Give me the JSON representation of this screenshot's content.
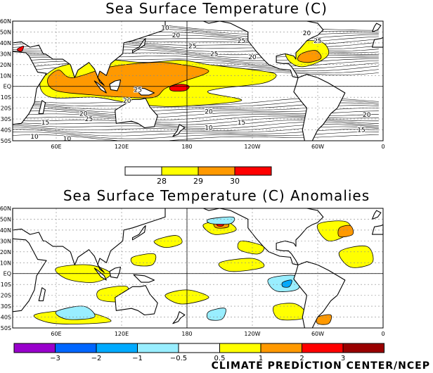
{
  "map1": {
    "title": "Sea Surface Temperature (C)",
    "lat_labels": [
      "60N",
      "50N",
      "40N",
      "30N",
      "20N",
      "10N",
      "EQ",
      "10S",
      "20S",
      "30S",
      "40S",
      "50S"
    ],
    "lon_labels": [
      "60E",
      "120E",
      "180",
      "120W",
      "60W",
      "0"
    ],
    "contour_labels": [
      "10",
      "20",
      "25",
      "25",
      "20",
      "25",
      "20",
      "25",
      "25",
      "20",
      "15",
      "20",
      "25",
      "20",
      "15",
      "10",
      "20",
      "15",
      "10",
      "10"
    ],
    "legend_labels": [
      "28",
      "29",
      "30"
    ]
  },
  "map2": {
    "title": "Sea Surface Temperature (C) Anomalies",
    "lat_labels": [
      "60N",
      "50N",
      "40N",
      "30N",
      "20N",
      "10N",
      "EQ",
      "10S",
      "20S",
      "30S",
      "40S",
      "50S"
    ],
    "lon_labels": [
      "60E",
      "120E",
      "180",
      "120W",
      "60W",
      "0"
    ],
    "legend_labels": [
      "−3",
      "−2",
      "−1",
      "−0.5",
      "0.5",
      "1",
      "2",
      "3"
    ]
  },
  "colors": {
    "sst_28": "#ffff00",
    "sst_29": "#ff9900",
    "sst_30": "#ff0000",
    "anom_bins": [
      "#9900cc",
      "#0066ff",
      "#00aaff",
      "#99eeff",
      "#ffffff",
      "#ffff00",
      "#ff9900",
      "#ff0000",
      "#990000"
    ]
  },
  "credit": "CLIMATE PREDICTION CENTER/NCEP"
}
